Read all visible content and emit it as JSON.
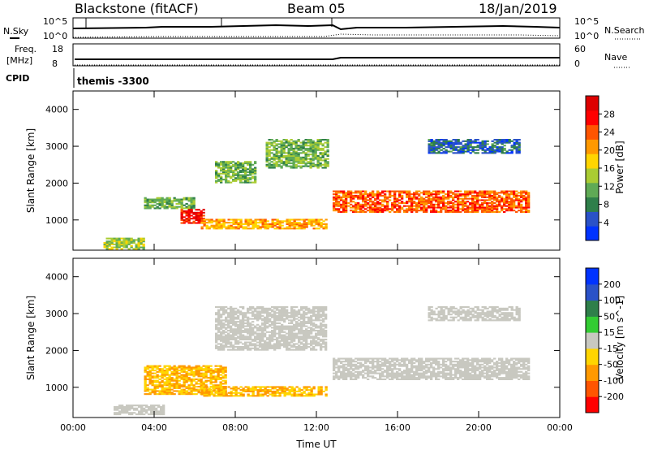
{
  "header": {
    "radar": "Blackstone (fitACF)",
    "beam": "Beam 05",
    "date": "18/Jan/2019"
  },
  "noise_panel": {
    "left_label": "N.Sky",
    "right_label": "N.Search",
    "left_ticks": [
      "10^5",
      "10^0"
    ],
    "right_ticks": [
      "10^5",
      "10^0"
    ]
  },
  "freq_panel": {
    "left_label_1": "Freq.",
    "left_label_2": "[MHz]",
    "right_label": "Nave",
    "left_ticks": [
      "18",
      "8"
    ],
    "right_ticks": [
      "60",
      "0"
    ]
  },
  "cpid_panel": {
    "label": "CPID",
    "value": "themis -3300"
  },
  "chart_data": [
    {
      "type": "heatmap",
      "quantity": "Power",
      "ylabel": "Slant Range [km]",
      "xlabel": "",
      "colorbar_label": "Power [dB]",
      "colorbar_ticks": [
        "28",
        "24",
        "20",
        "16",
        "12",
        "8",
        "4"
      ],
      "colorbar_colors": [
        "#0033ff",
        "#2a52c8",
        "#2f7f4a",
        "#5faa55",
        "#aacc33",
        "#ffd500",
        "#ff9900",
        "#ff5500",
        "#ff0000",
        "#dd0000"
      ],
      "y_ticks": [
        "4000",
        "3000",
        "2000",
        "1000"
      ],
      "ylim": [
        180,
        4500
      ],
      "xlim_hours": [
        0,
        24
      ],
      "grid": false,
      "features": [
        {
          "t_start": 1.5,
          "t_end": 3.5,
          "r_start": 200,
          "r_end": 500,
          "level": 14
        },
        {
          "t_start": 3.5,
          "t_end": 6.0,
          "r_start": 1300,
          "r_end": 1600,
          "level": 12
        },
        {
          "t_start": 5.3,
          "t_end": 6.5,
          "r_start": 900,
          "r_end": 1300,
          "level": 28
        },
        {
          "t_start": 6.3,
          "t_end": 12.5,
          "r_start": 750,
          "r_end": 1000,
          "level": 20
        },
        {
          "t_start": 7.0,
          "t_end": 9.0,
          "r_start": 2000,
          "r_end": 2600,
          "level": 12
        },
        {
          "t_start": 9.5,
          "t_end": 12.5,
          "r_start": 2400,
          "r_end": 3200,
          "level": 12
        },
        {
          "t_start": 12.8,
          "t_end": 22.5,
          "r_start": 1200,
          "r_end": 1800,
          "level": 24
        },
        {
          "t_start": 17.5,
          "t_end": 22.0,
          "r_start": 2800,
          "r_end": 3200,
          "level": 6
        }
      ]
    },
    {
      "type": "heatmap",
      "quantity": "Velocity",
      "ylabel": "Slant Range [km]",
      "xlabel": "Time UT",
      "colorbar_label": "Velocity [m s^-1]",
      "colorbar_ticks": [
        "200",
        "100",
        "50",
        "15",
        "-15",
        "-50",
        "-100",
        "-200"
      ],
      "colorbar_colors": [
        "#ff0000",
        "#ff5500",
        "#ff9900",
        "#ffd500",
        "#c8c8c0",
        "#33cc33",
        "#2f7f4a",
        "#2a52c8",
        "#0033ff"
      ],
      "y_ticks": [
        "4000",
        "3000",
        "2000",
        "1000"
      ],
      "x_ticks": [
        "00:00",
        "04:00",
        "08:00",
        "12:00",
        "16:00",
        "20:00",
        "00:00"
      ],
      "ylim": [
        180,
        4500
      ],
      "xlim_hours": [
        0,
        24
      ],
      "grid": false,
      "features": [
        {
          "t_start": 2.0,
          "t_end": 4.5,
          "r_start": 250,
          "r_end": 500,
          "level": 0
        },
        {
          "t_start": 3.5,
          "t_end": 7.5,
          "r_start": 800,
          "r_end": 1600,
          "level": -50
        },
        {
          "t_start": 6.3,
          "t_end": 12.5,
          "r_start": 750,
          "r_end": 1000,
          "level": -50
        },
        {
          "t_start": 7.0,
          "t_end": 12.5,
          "r_start": 2000,
          "r_end": 3200,
          "level": 0
        },
        {
          "t_start": 12.8,
          "t_end": 22.5,
          "r_start": 1200,
          "r_end": 1800,
          "level": 0
        },
        {
          "t_start": 17.5,
          "t_end": 22.0,
          "r_start": 2800,
          "r_end": 3200,
          "level": 0
        }
      ]
    }
  ]
}
